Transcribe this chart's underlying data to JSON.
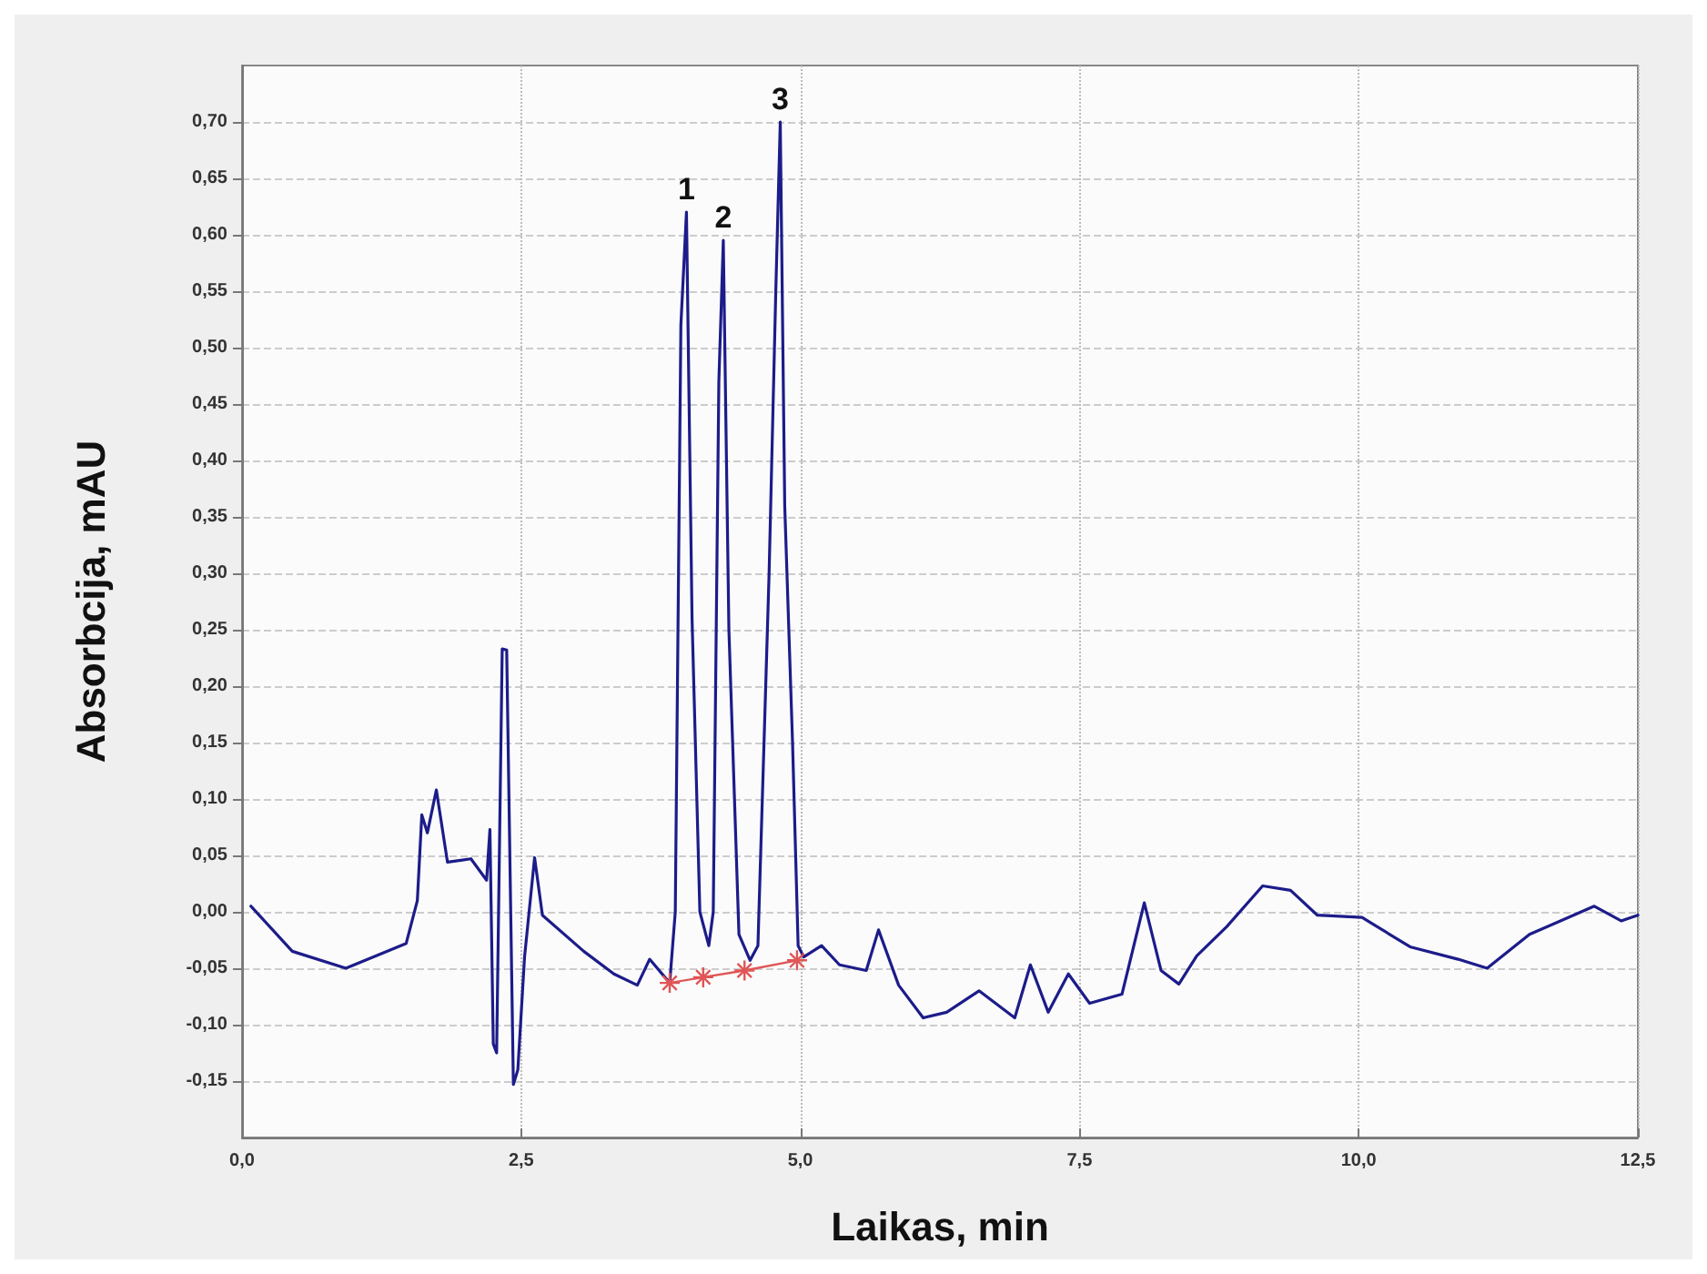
{
  "chart_data": {
    "type": "line",
    "xlabel": "Laikas, min",
    "ylabel": "Absorbcija, mAU",
    "series": [
      {
        "color": "#1c1c8a",
        "marker": "none",
        "x": [
          0.08,
          0.45,
          0.93,
          1.47,
          1.57,
          1.61,
          1.66,
          1.74,
          1.84,
          2.05,
          2.19,
          2.22,
          2.25,
          2.28,
          2.33,
          2.37,
          2.43,
          2.47,
          2.53,
          2.62,
          2.69,
          3.06,
          3.33,
          3.54,
          3.65,
          3.83,
          3.88,
          3.93,
          3.98,
          4.03,
          4.1,
          4.18,
          4.22,
          4.27,
          4.31,
          4.36,
          4.45,
          4.55,
          4.62,
          4.72,
          4.78,
          4.82,
          4.86,
          4.93,
          4.98,
          5.03,
          5.19,
          5.35,
          5.59,
          5.7,
          5.88,
          6.1,
          6.31,
          6.6,
          6.92,
          7.06,
          7.22,
          7.4,
          7.59,
          7.88,
          8.08,
          8.23,
          8.39,
          8.55,
          8.82,
          9.14,
          9.39,
          9.63,
          10.03,
          10.46,
          10.89,
          11.15,
          11.53,
          12.11,
          12.35,
          12.5
        ],
        "values": [
          0.005,
          -0.035,
          -0.05,
          -0.028,
          0.01,
          0.086,
          0.07,
          0.108,
          0.044,
          0.047,
          0.028,
          0.073,
          -0.117,
          -0.125,
          0.233,
          0.232,
          -0.153,
          -0.14,
          -0.04,
          0.048,
          -0.003,
          -0.035,
          -0.055,
          -0.065,
          -0.042,
          -0.063,
          0.0,
          0.52,
          0.62,
          0.26,
          0.0,
          -0.03,
          0.0,
          0.47,
          0.595,
          0.25,
          -0.02,
          -0.043,
          -0.03,
          0.3,
          0.55,
          0.7,
          0.36,
          0.15,
          -0.03,
          -0.04,
          -0.03,
          -0.047,
          -0.052,
          -0.016,
          -0.065,
          -0.094,
          -0.089,
          -0.07,
          -0.094,
          -0.047,
          -0.089,
          -0.055,
          -0.081,
          -0.073,
          0.008,
          -0.052,
          -0.064,
          -0.039,
          -0.013,
          0.023,
          0.019,
          -0.003,
          -0.005,
          -0.031,
          -0.042,
          -0.05,
          -0.02,
          0.005,
          -0.008,
          -0.003
        ]
      },
      {
        "color": "#e05555",
        "marker": "cross",
        "x": [
          3.83,
          4.13,
          4.5,
          4.97
        ],
        "values": [
          -0.063,
          -0.058,
          -0.052,
          -0.043
        ]
      }
    ],
    "annotations": [
      {
        "text": "1",
        "x": 3.98,
        "y": 0.62
      },
      {
        "text": "2",
        "x": 4.31,
        "y": 0.595
      },
      {
        "text": "3",
        "x": 4.82,
        "y": 0.7
      }
    ],
    "xlim": [
      0,
      12.5
    ],
    "xticks": [
      {
        "value": 0,
        "label": "0,0"
      },
      {
        "value": 2.5,
        "label": "2,5"
      },
      {
        "value": 5,
        "label": "5,0"
      },
      {
        "value": 7.5,
        "label": "7,5"
      },
      {
        "value": 10,
        "label": "10,0"
      },
      {
        "value": 12.5,
        "label": "12,5"
      }
    ],
    "ylim": [
      -0.2,
      0.75
    ],
    "yticks": [
      {
        "value": -0.15,
        "label": "-0,15"
      },
      {
        "value": -0.1,
        "label": "-0,10"
      },
      {
        "value": -0.05,
        "label": "-0,05"
      },
      {
        "value": 0,
        "label": "0,00"
      },
      {
        "value": 0.05,
        "label": "0,05"
      },
      {
        "value": 0.1,
        "label": "0,10"
      },
      {
        "value": 0.15,
        "label": "0,15"
      },
      {
        "value": 0.2,
        "label": "0,20"
      },
      {
        "value": 0.25,
        "label": "0,25"
      },
      {
        "value": 0.3,
        "label": "0,30"
      },
      {
        "value": 0.35,
        "label": "0,35"
      },
      {
        "value": 0.4,
        "label": "0,40"
      },
      {
        "value": 0.45,
        "label": "0,45"
      },
      {
        "value": 0.5,
        "label": "0,50"
      },
      {
        "value": 0.55,
        "label": "0,55"
      },
      {
        "value": 0.6,
        "label": "0,60"
      },
      {
        "value": 0.65,
        "label": "0,65"
      },
      {
        "value": 0.7,
        "label": "0,70"
      }
    ],
    "grid": true
  }
}
